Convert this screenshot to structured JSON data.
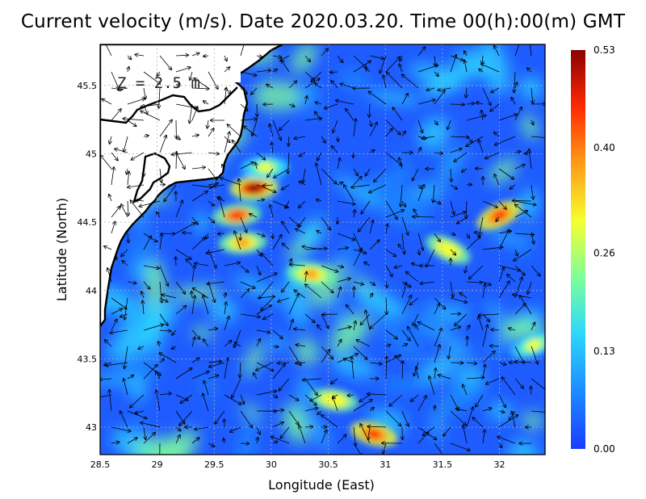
{
  "title": "Current velocity (m/s). Date 2020.03.20. Time 00(h):00(m) GMT",
  "depth_label": "Z = 2.5 m",
  "colors": {
    "sea_low": "#1f5cff",
    "land": "#ffffff",
    "coast": "#000000",
    "grid": "#b0b0b0",
    "colorbar_stops": [
      "#1a3cff",
      "#1d8bff",
      "#2bd6ff",
      "#7dff9a",
      "#f5ff2e",
      "#ff9d17",
      "#ff2a00",
      "#8b0000"
    ]
  },
  "chart_data": {
    "type": "heatmap",
    "title": "Current velocity (m/s). Date 2020.03.20. Time 00(h):00(m) GMT",
    "xlabel": "Longitude (East)",
    "ylabel": "Latitude (North)",
    "xlim": [
      28.5,
      32.4
    ],
    "ylim": [
      42.8,
      45.8
    ],
    "x_ticks": [
      "28.5",
      "29",
      "29.5",
      "30",
      "30.5",
      "31",
      "31.5",
      "32"
    ],
    "x_tick_values": [
      28.5,
      29,
      29.5,
      30,
      30.5,
      31,
      31.5,
      32
    ],
    "y_ticks": [
      "43",
      "43.5",
      "44",
      "44.5",
      "45",
      "45.5"
    ],
    "y_tick_values": [
      43,
      43.5,
      44,
      44.5,
      45,
      45.5
    ],
    "grid": true,
    "colorbar": {
      "min": 0.0,
      "max": 0.53,
      "ticks": [
        "0.00",
        "0.13",
        "0.26",
        "0.40",
        "0.53"
      ],
      "tick_values": [
        0.0,
        0.13,
        0.26,
        0.4,
        0.53
      ]
    },
    "hotspots": [
      {
        "lon": 29.85,
        "lat": 44.75,
        "speed": 0.5
      },
      {
        "lon": 30.9,
        "lat": 42.95,
        "speed": 0.48
      },
      {
        "lon": 32.0,
        "lat": 44.55,
        "speed": 0.45
      },
      {
        "lon": 29.7,
        "lat": 44.55,
        "speed": 0.42
      },
      {
        "lon": 30.35,
        "lat": 44.12,
        "speed": 0.4
      },
      {
        "lon": 29.75,
        "lat": 44.35,
        "speed": 0.35
      },
      {
        "lon": 31.55,
        "lat": 44.3,
        "speed": 0.34
      },
      {
        "lon": 32.3,
        "lat": 43.6,
        "speed": 0.3
      },
      {
        "lon": 30.55,
        "lat": 43.2,
        "speed": 0.32
      },
      {
        "lon": 29.95,
        "lat": 44.9,
        "speed": 0.3
      }
    ]
  }
}
